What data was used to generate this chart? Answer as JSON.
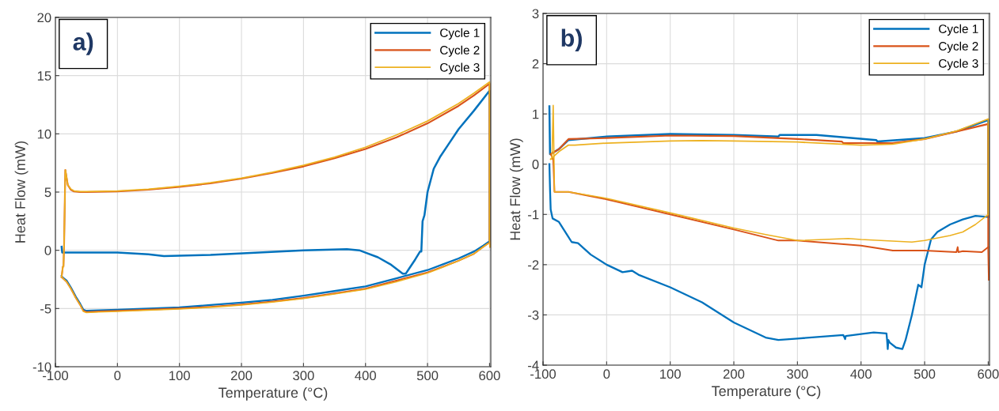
{
  "chart_data": [
    {
      "type": "line",
      "xlabel": "Temperature (°C)",
      "ylabel": "Heat Flow (mW)",
      "annotations": [
        "a)"
      ],
      "xlim": [
        -100,
        602
      ],
      "ylim": [
        -10,
        20
      ],
      "xticks": [
        -100,
        0,
        100,
        200,
        300,
        400,
        500,
        600
      ],
      "yticks": [
        -10,
        -5,
        0,
        5,
        10,
        15,
        20
      ],
      "grid": true,
      "legend": "top right",
      "series": [
        {
          "name": "Cycle 1",
          "color": "#0072bd",
          "x": [
            -90,
            -89,
            -88,
            -80,
            0,
            50,
            75,
            150,
            300,
            370,
            390,
            400,
            420,
            440,
            450,
            460,
            465,
            470,
            480,
            488,
            490,
            492,
            495,
            500,
            510,
            520,
            535,
            550,
            575,
            600,
            600
          ],
          "values": [
            0.3,
            -0.2,
            -0.2,
            -0.2,
            -0.2,
            -0.35,
            -0.5,
            -0.4,
            0,
            0.1,
            0,
            -0.2,
            -0.6,
            -1.2,
            -1.6,
            -2,
            -2,
            -1.6,
            -0.8,
            -0.1,
            -0.1,
            2.5,
            3,
            5,
            7,
            8,
            9.2,
            10.4,
            12,
            13.7,
            0.8
          ]
        },
        {
          "color": "#0072bd",
          "x": [
            -90,
            -89,
            -82,
            -75,
            -67,
            -60,
            -55,
            -50,
            -30,
            0,
            50,
            100,
            150,
            200,
            250,
            300,
            350,
            400,
            450,
            500,
            525,
            550,
            575,
            590,
            598
          ],
          "values": [
            -2.2,
            -2.3,
            -2.6,
            -3.2,
            -4,
            -4.6,
            -5.1,
            -5.2,
            -5.15,
            -5.1,
            -5.0,
            -4.9,
            -4.7,
            -4.5,
            -4.25,
            -3.9,
            -3.5,
            -3.1,
            -2.4,
            -1.7,
            -1.2,
            -0.7,
            -0.1,
            0.4,
            0.7
          ]
        },
        {
          "name": "Cycle 2",
          "color": "#d95319",
          "x": [
            -90,
            -88,
            -87,
            -86,
            -84,
            -80,
            -75,
            -70,
            -60,
            -50,
            0,
            50,
            100,
            150,
            200,
            250,
            300,
            350,
            400,
            450,
            500,
            550,
            575,
            600,
            600,
            601
          ],
          "values": [
            -2.3,
            -1.4,
            -1.4,
            0.5,
            6.9,
            5.6,
            5.2,
            5.05,
            5.0,
            5.0,
            5.05,
            5.2,
            5.45,
            5.75,
            6.15,
            6.65,
            7.2,
            7.9,
            8.7,
            9.7,
            10.9,
            12.4,
            13.3,
            14.3,
            0.9,
            0.3
          ]
        },
        {
          "color": "#d95319",
          "x": [
            -90,
            -89,
            -82,
            -75,
            -67,
            -60,
            -55,
            -50,
            -30,
            0,
            50,
            100,
            150,
            200,
            250,
            300,
            350,
            400,
            450,
            500,
            525,
            550,
            575,
            590,
            598
          ],
          "values": [
            -2.3,
            -2.35,
            -2.7,
            -3.3,
            -4.1,
            -4.7,
            -5.2,
            -5.3,
            -5.25,
            -5.2,
            -5.1,
            -5.0,
            -4.85,
            -4.65,
            -4.4,
            -4.1,
            -3.7,
            -3.3,
            -2.6,
            -1.9,
            -1.4,
            -0.9,
            -0.3,
            0.3,
            0.6
          ]
        },
        {
          "name": "Cycle 3",
          "color": "#edb120",
          "x": [
            -90,
            -88,
            -87,
            -86,
            -84,
            -80,
            -75,
            -70,
            -60,
            -50,
            0,
            50,
            100,
            150,
            200,
            250,
            300,
            350,
            400,
            450,
            500,
            550,
            575,
            600,
            600,
            601
          ],
          "values": [
            -2.3,
            -1.4,
            -1.4,
            0.5,
            6.9,
            5.6,
            5.25,
            5.1,
            5.05,
            5.05,
            5.1,
            5.25,
            5.5,
            5.8,
            6.2,
            6.7,
            7.3,
            8.0,
            8.85,
            9.9,
            11.1,
            12.6,
            13.5,
            14.45,
            0.9,
            0.3
          ]
        },
        {
          "color": "#edb120",
          "x": [
            -90,
            -89,
            -82,
            -75,
            -67,
            -60,
            -55,
            -50,
            -30,
            0,
            50,
            100,
            150,
            200,
            250,
            300,
            350,
            400,
            450,
            500,
            525,
            550,
            575,
            590,
            598
          ],
          "values": [
            -2.3,
            -2.35,
            -2.7,
            -3.3,
            -4.1,
            -4.7,
            -5.25,
            -5.35,
            -5.3,
            -5.25,
            -5.15,
            -5.05,
            -4.9,
            -4.7,
            -4.45,
            -4.15,
            -3.75,
            -3.35,
            -2.7,
            -1.95,
            -1.45,
            -0.9,
            -0.3,
            0.3,
            0.6
          ]
        }
      ]
    },
    {
      "type": "line",
      "xlabel": "Temperature (°C)",
      "ylabel": "Heat Flow (mW)",
      "annotations": [
        "b)"
      ],
      "xlim": [
        -100,
        602
      ],
      "ylim": [
        -4,
        3
      ],
      "xticks": [
        -100,
        0,
        100,
        200,
        300,
        400,
        500,
        600
      ],
      "yticks": [
        -4,
        -3,
        -2,
        -1,
        0,
        1,
        2,
        3
      ],
      "grid": true,
      "legend": "top right",
      "series": [
        {
          "name": "Cycle 1",
          "color": "#0072bd",
          "x": [
            -90,
            -89,
            -88,
            -75,
            -60,
            0,
            100,
            200,
            270,
            272,
            330,
            424,
            426,
            500,
            550,
            600,
            600
          ],
          "values": [
            1.15,
            0.2,
            0.2,
            0.3,
            0.48,
            0.55,
            0.6,
            0.58,
            0.55,
            0.58,
            0.58,
            0.48,
            0.45,
            0.52,
            0.65,
            0.88,
            -1.05
          ]
        },
        {
          "color": "#0072bd",
          "x": [
            -90,
            -89,
            -88,
            -85,
            -75,
            -60,
            -55,
            -45,
            -25,
            0,
            25,
            40,
            50,
            100,
            150,
            200,
            250,
            270,
            300,
            372,
            374,
            375,
            376,
            400,
            420,
            440,
            441,
            442,
            443,
            445,
            455,
            465,
            470,
            480,
            490,
            495,
            500,
            510,
            520,
            540,
            560,
            580,
            600
          ],
          "values": [
            0,
            -0.5,
            -0.9,
            -1.08,
            -1.15,
            -1.45,
            -1.55,
            -1.57,
            -1.8,
            -2.0,
            -2.15,
            -2.12,
            -2.2,
            -2.45,
            -2.75,
            -3.15,
            -3.45,
            -3.5,
            -3.47,
            -3.4,
            -3.45,
            -3.48,
            -3.42,
            -3.38,
            -3.35,
            -3.37,
            -3.5,
            -3.68,
            -3.5,
            -3.55,
            -3.65,
            -3.68,
            -3.5,
            -3.0,
            -2.4,
            -2.45,
            -2.0,
            -1.5,
            -1.35,
            -1.2,
            -1.1,
            -1.03,
            -1.05
          ]
        },
        {
          "name": "Cycle 2",
          "color": "#d95319",
          "x": [
            -88,
            -75,
            -60,
            0,
            100,
            200,
            300,
            370,
            372,
            450,
            500,
            550,
            600,
            600,
            601
          ],
          "values": [
            0.2,
            0.3,
            0.5,
            0.52,
            0.57,
            0.56,
            0.5,
            0.45,
            0.42,
            0.42,
            0.5,
            0.65,
            0.8,
            -1.65,
            -2.3
          ]
        },
        {
          "color": "#d95319",
          "x": [
            -88,
            -86,
            -84,
            -82,
            -60,
            0,
            100,
            200,
            270,
            300,
            400,
            450,
            500,
            550,
            552,
            553,
            560,
            590,
            600
          ],
          "values": [
            0.2,
            0.15,
            0.1,
            -0.55,
            -0.55,
            -0.7,
            -1.0,
            -1.3,
            -1.52,
            -1.52,
            -1.62,
            -1.72,
            -1.72,
            -1.75,
            -1.65,
            -1.75,
            -1.73,
            -1.75,
            -1.65
          ]
        },
        {
          "name": "Cycle 3",
          "color": "#edb120",
          "x": [
            -88,
            -75,
            -60,
            -50,
            0,
            100,
            150,
            200,
            300,
            400,
            450,
            500,
            550,
            600,
            600
          ],
          "values": [
            0.1,
            0.25,
            0.38,
            0.38,
            0.42,
            0.46,
            0.47,
            0.46,
            0.44,
            0.38,
            0.4,
            0.5,
            0.66,
            0.9,
            -1.0
          ]
        },
        {
          "color": "#edb120",
          "x": [
            -88,
            -86,
            -84,
            -82,
            -60,
            0,
            100,
            200,
            250,
            300,
            380,
            400,
            480,
            500,
            540,
            560,
            580,
            600
          ],
          "values": [
            0.1,
            0.1,
            1.17,
            -0.55,
            -0.55,
            -0.68,
            -0.97,
            -1.27,
            -1.4,
            -1.52,
            -1.48,
            -1.5,
            -1.55,
            -1.52,
            -1.42,
            -1.35,
            -1.2,
            -1.0
          ]
        }
      ]
    }
  ]
}
